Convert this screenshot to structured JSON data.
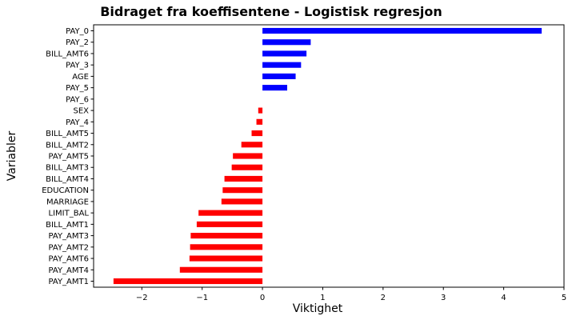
{
  "chart_data": {
    "type": "bar",
    "orientation": "horizontal",
    "title": "Bidraget fra koeffisentene - Logistisk regresjon",
    "xlabel": "Viktighet",
    "ylabel": "Variabler",
    "xlim": [
      -2.8,
      5.0
    ],
    "xticks": [
      -2,
      -1,
      0,
      1,
      2,
      3,
      4,
      5
    ],
    "xtick_labels": [
      "−2",
      "−1",
      "0",
      "1",
      "2",
      "3",
      "4",
      "5"
    ],
    "grid": false,
    "legend": "none",
    "colors": {
      "positive": "#0000ff",
      "negative": "#ff0000"
    },
    "categories": [
      "PAY_0",
      "PAY_2",
      "BILL_AMT6",
      "PAY_3",
      "AGE",
      "PAY_5",
      "PAY_6",
      "SEX",
      "PAY_4",
      "BILL_AMT5",
      "BILL_AMT2",
      "PAY_AMT5",
      "BILL_AMT3",
      "BILL_AMT4",
      "EDUCATION",
      "MARRIAGE",
      "LIMIT_BAL",
      "BILL_AMT1",
      "PAY_AMT3",
      "PAY_AMT2",
      "PAY_AMT6",
      "PAY_AMT4",
      "PAY_AMT1"
    ],
    "values": [
      4.63,
      0.8,
      0.73,
      0.64,
      0.55,
      0.41,
      0.0,
      -0.07,
      -0.1,
      -0.18,
      -0.35,
      -0.49,
      -0.51,
      -0.63,
      -0.66,
      -0.68,
      -1.06,
      -1.09,
      -1.19,
      -1.2,
      -1.21,
      -1.37,
      -2.47
    ]
  }
}
